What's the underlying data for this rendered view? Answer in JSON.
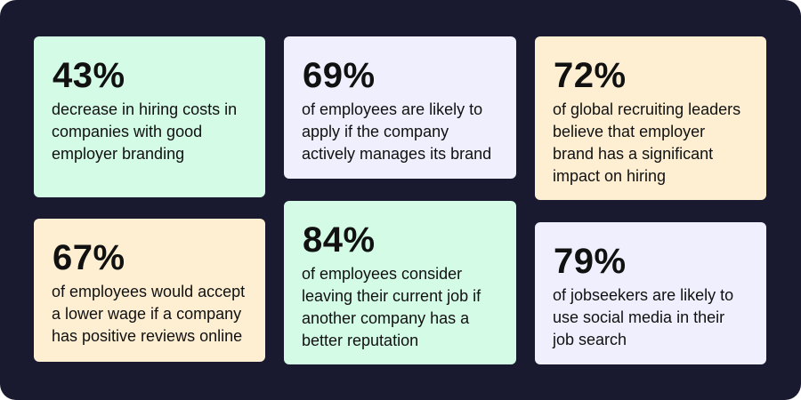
{
  "colors": {
    "background": "#191a2f",
    "mint": "#d3fbe6",
    "lavender": "#efeffd",
    "peach": "#feefd3"
  },
  "cards": [
    {
      "stat": "43%",
      "lines": [
        "decrease in hiring costs in",
        "companies with good",
        "employer branding"
      ]
    },
    {
      "stat": "69%",
      "lines": [
        "of employees are likely to",
        "apply if the company",
        "actively manages its brand"
      ]
    },
    {
      "stat": "72%",
      "lines": [
        "of global recruiting leaders",
        "believe that employer",
        "brand has a significant",
        "impact on hiring"
      ]
    },
    {
      "stat": "67%",
      "lines": [
        "of employees would accept",
        "a lower wage if a company",
        "has positive reviews online"
      ]
    },
    {
      "stat": "84%",
      "lines": [
        "of employees consider",
        "leaving their current job if",
        "another company has a",
        "better reputation"
      ]
    },
    {
      "stat": "79%",
      "lines": [
        "of jobseekers are likely to",
        "use social media in their",
        "job search"
      ]
    }
  ]
}
